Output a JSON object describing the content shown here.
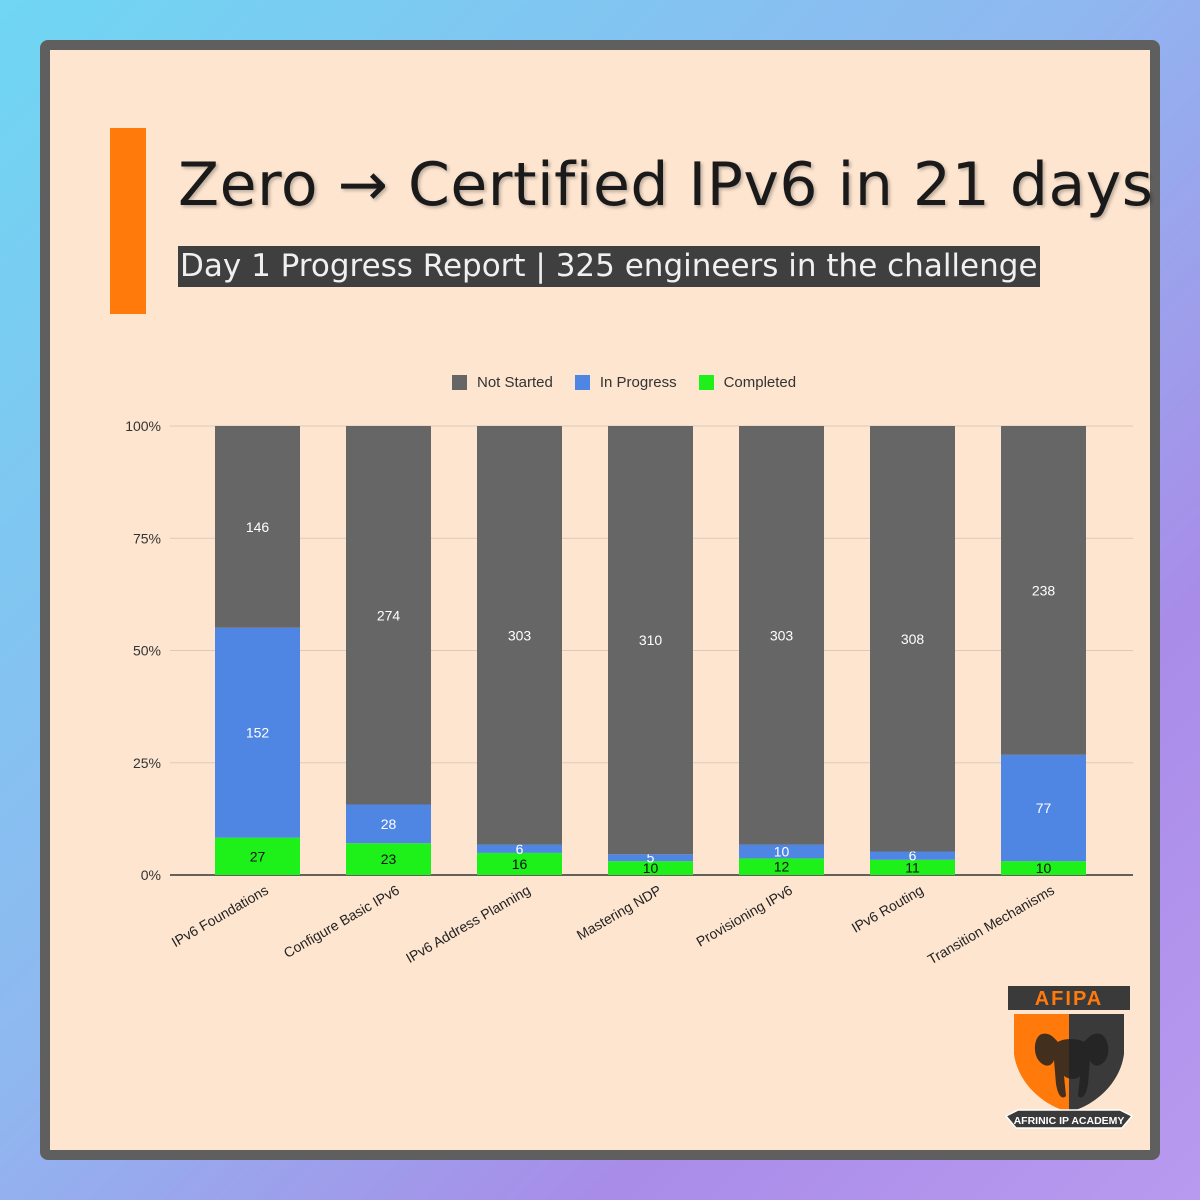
{
  "header": {
    "title": "Zero → Certified IPv6 in 21 days",
    "subtitle": "Day 1 Progress Report | 325 engineers in the challenge"
  },
  "colors": {
    "not_started": "#666666",
    "in_progress": "#4f86e3",
    "completed": "#1ef01a",
    "accent": "#ff7a0a"
  },
  "chart_data": {
    "type": "bar",
    "stacked": "percent",
    "categories": [
      "IPv6 Foundations",
      "Configure Basic IPv6",
      "IPv6 Address Planning",
      "Mastering NDP",
      "Provisioning IPv6",
      "IPv6 Routing",
      "Transition Mechanisms"
    ],
    "series": [
      {
        "name": "Completed",
        "values": [
          27,
          23,
          16,
          10,
          12,
          11,
          10
        ]
      },
      {
        "name": "In Progress",
        "values": [
          152,
          28,
          6,
          5,
          10,
          6,
          77
        ]
      },
      {
        "name": "Not Started",
        "values": [
          146,
          274,
          303,
          310,
          303,
          308,
          238
        ]
      }
    ],
    "y_ticks": [
      "0%",
      "25%",
      "50%",
      "75%",
      "100%"
    ],
    "ylim": [
      0,
      100
    ],
    "grid": true,
    "legend_position": "top"
  },
  "logo": {
    "text": "AFIPA",
    "banner": "AFRINIC IP ACADEMY"
  }
}
